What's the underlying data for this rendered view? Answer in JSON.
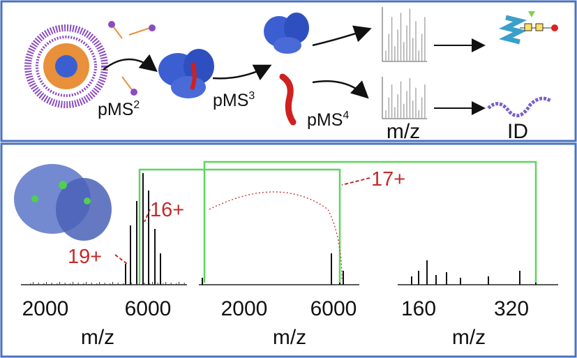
{
  "top_panel": {
    "steps": [
      {
        "label": "pMS",
        "superscript": "2"
      },
      {
        "label": "pMS",
        "superscript": "3"
      },
      {
        "label": "pMS",
        "superscript": "4"
      }
    ],
    "axis_label": "m/z",
    "result_label": "ID"
  },
  "bottom_panel": {
    "spectra": [
      {
        "charge_labels": [
          "19+",
          "16+"
        ],
        "tick_labels": [
          "2000",
          "6000"
        ],
        "axis_label": "m/z"
      },
      {
        "charge_labels": [
          "17+"
        ],
        "tick_labels": [
          "2000",
          "6000"
        ],
        "axis_label": "m/z"
      },
      {
        "tick_labels": [
          "160",
          "320"
        ],
        "axis_label": "m/z"
      }
    ]
  }
}
